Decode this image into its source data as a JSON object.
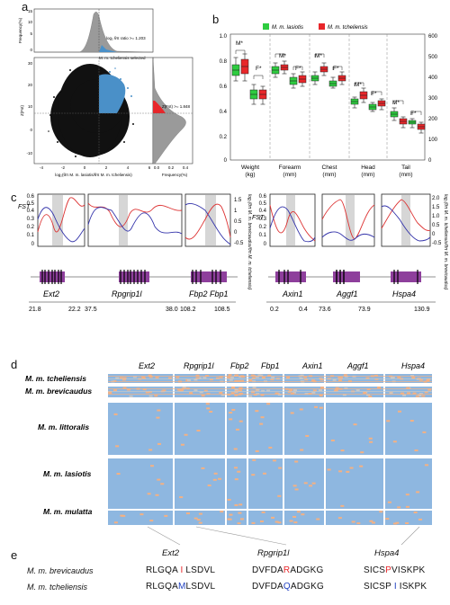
{
  "panels": {
    "a": "a",
    "b": "b",
    "c": "c",
    "d": "d",
    "e": "e"
  },
  "panel_a": {
    "top_y_label": "Frequency(%)",
    "top_y_ticks": [
      "15",
      "10",
      "5",
      "0"
    ],
    "right_x_label": "Frequency(%)",
    "right_x_ticks": [
      "0.0",
      "0.2",
      "0.4"
    ],
    "left_y_label": "Z(Fst)",
    "left_y_ticks": [
      "30",
      "20",
      "10",
      "0",
      "-10"
    ],
    "x_label": "log₂(θπ M. m. lasiotis/θπ M. m. tcheliensis)",
    "x_ticks": [
      "-4",
      "-2",
      "0",
      "2",
      "4",
      "6"
    ],
    "annotation_ratio": "log₂ θπ ratio >= 1.203",
    "annotation_selected": "M. m. tcheliensis selected",
    "annotation_zfst": "Z(Fst) >= 1.848"
  },
  "panel_b": {
    "legend": [
      {
        "name": "M. m. lasiotis",
        "color": "#2ecc40"
      },
      {
        "name": "M. m. tcheliensis",
        "color": "#e8262a"
      }
    ],
    "y_left_ticks": [
      "1.0",
      "0.8",
      "0.6",
      "0.4",
      "0.2",
      "0"
    ],
    "y_right_ticks": [
      "600",
      "500",
      "400",
      "300",
      "200",
      "100",
      "0"
    ],
    "categories": [
      {
        "name": "Weight",
        "unit": "(kg)"
      },
      {
        "name": "Forearm",
        "unit": "(mm)"
      },
      {
        "name": "Chest",
        "unit": "(mm)"
      },
      {
        "name": "Head",
        "unit": "(mm)"
      },
      {
        "name": "Tail",
        "unit": "(mm)"
      }
    ],
    "sig_labels": [
      "M*",
      "F*",
      "M*",
      "F*",
      "M*",
      "F*",
      "M*",
      "F*",
      "M*",
      "F*"
    ]
  },
  "panel_c": {
    "fst_label": "FST",
    "left_y_ticks": [
      "0.6",
      "0.5",
      "0.4",
      "0.3",
      "0.2",
      "0.1",
      "0"
    ],
    "left_right_ticks": [
      "1.5",
      "1",
      "0.5",
      "0",
      "-0.5"
    ],
    "left_right_label": "log₂(θπ M. m. brevicaudus/θπ M. m. tcheliensis)",
    "right_y_ticks": [
      "0.6",
      "0.5",
      "0.4",
      "0.3",
      "0.2",
      "0.1",
      "0"
    ],
    "right_right_ticks": [
      "2.0",
      "1.5",
      "1.0",
      "0.5",
      "0",
      "-0.5"
    ],
    "right_right_label": "log₂(θπ M. m. tcheliensis/θπ M. m. brevicaudus)",
    "genes_left": [
      "Ext2",
      "Rpgrip1l",
      "Fbp2 Fbp1"
    ],
    "genes_right": [
      "Axin1",
      "Aggf1",
      "Hspa4"
    ],
    "coords_left": [
      "21.8",
      "22.2",
      "37.5",
      "38.0",
      "108.2",
      "108.5"
    ],
    "coords_right": [
      "0.2",
      "0.4",
      "73.6",
      "73.9",
      "130.9"
    ]
  },
  "panel_d": {
    "genes": [
      "Ext2",
      "Rpgrip1l",
      "Fbp2",
      "Fbp1",
      "Axin1",
      "Aggf1",
      "Hspa4"
    ],
    "species": [
      "M. m. tcheliensis",
      "M. m. brevicaudus",
      "M. m. littoralis",
      "M. m. lasiotis",
      "M. m. mulatta"
    ],
    "colors": {
      "ref": "#8eb7e0",
      "alt": "#f4b183",
      "het": "#c8c8c8"
    }
  },
  "panel_e": {
    "genes": [
      "Ext2",
      "Rpgrip1l",
      "Hspa4"
    ],
    "rows": [
      {
        "species": "M. m. brevicaudus",
        "seqs": [
          {
            "pre": "RLGQA",
            "mid": " I ",
            "post": "LSDVL",
            "midColor": "#e8262a"
          },
          {
            "pre": "DVFDA",
            "mid": "R",
            "post": "ADGKG",
            "midColor": "#e8262a"
          },
          {
            "pre": "SICS",
            "mid": "P",
            "post": "VISKPK",
            "midColor": "#e8262a"
          }
        ]
      },
      {
        "species": "M. m. tcheliensis",
        "seqs": [
          {
            "pre": "RLGQA",
            "mid": "M",
            "post": "LSDVL",
            "midColor": "#1f3fbf"
          },
          {
            "pre": "DVFDA",
            "mid": "Q",
            "post": "ADGKG",
            "midColor": "#1f3fbf"
          },
          {
            "pre": "SICSP",
            "mid": " I ",
            "post": "ISKPK",
            "midColor": "#1f3fbf"
          }
        ]
      }
    ]
  }
}
